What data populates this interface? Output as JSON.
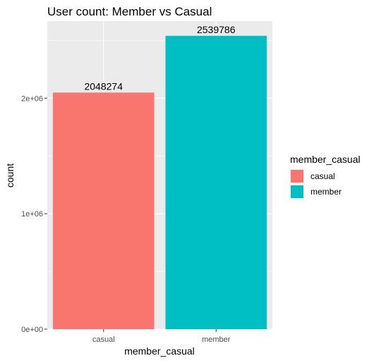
{
  "chart_data": {
    "type": "bar",
    "title": "User count: Member vs Casual",
    "xlabel": "member_casual",
    "ylabel": "count",
    "categories": [
      "casual",
      "member"
    ],
    "values": [
      2048274,
      2539786
    ],
    "data_labels": [
      "2048274",
      "2539786"
    ],
    "colors": [
      "#F8766D",
      "#00BFC4"
    ],
    "ylim": [
      0,
      2666775
    ],
    "yticks": [
      0,
      1000000,
      2000000
    ],
    "ytick_labels": [
      "0e+00",
      "1e+06",
      "2e+06"
    ],
    "grid": true,
    "panel_background": "#EBEBEB",
    "legend": {
      "position": "right",
      "title": "member_casual",
      "entries": [
        "casual",
        "member"
      ]
    }
  }
}
